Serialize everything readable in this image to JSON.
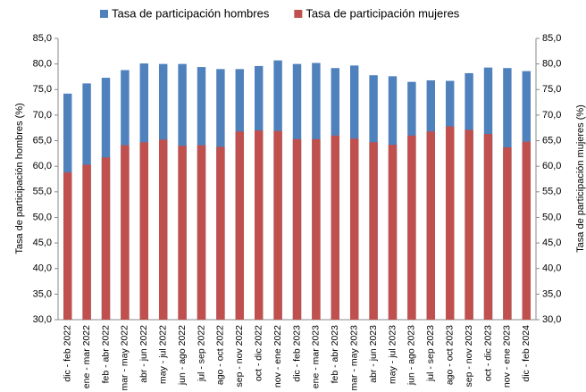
{
  "chart_data": {
    "type": "bar",
    "ylabel": "Tasa de participación hombres (%)",
    "y2label": "Tasa de participación mujeres (%)",
    "categories": [
      "dic - feb 2022",
      "ene - mar 2022",
      "feb - abr 2022",
      "mar - may 2022",
      "abr - jun 2022",
      "may - jul 2022",
      "jun - ago 2022",
      "jul - sep 2022",
      "ago - oct 2022",
      "sep - nov 2022",
      "oct - dic 2022",
      "nov - ene 2022",
      "dic - feb 2023",
      "ene - mar 2023",
      "feb - abr 2023",
      "mar - may 2023",
      "abr - jun 2023",
      "may - jul 2023",
      "jun - ago 2023",
      "jul - sep 2023",
      "ago - oct 2023",
      "sep - nov 2023",
      "oct - dic 2023",
      "nov - ene 2023",
      "dic - feb 2024"
    ],
    "series": [
      {
        "name": "Tasa de participación hombres",
        "color": "#4f81bd",
        "values": [
          74.2,
          76.2,
          77.3,
          78.8,
          80.1,
          80.0,
          80.0,
          79.4,
          79.0,
          79.0,
          79.6,
          80.7,
          80.0,
          80.2,
          79.2,
          79.7,
          77.8,
          77.6,
          76.5,
          76.8,
          76.7,
          78.2,
          79.3,
          79.2,
          78.6
        ]
      },
      {
        "name": "Tasa de participación mujeres",
        "color": "#c0504d",
        "axis": "y2",
        "values": [
          58.8,
          60.3,
          61.7,
          64.1,
          64.7,
          65.2,
          64.0,
          64.1,
          63.8,
          66.8,
          67.0,
          66.9,
          65.3,
          65.3,
          66.0,
          65.4,
          64.7,
          64.2,
          66.0,
          66.8,
          67.8,
          67.1,
          66.3,
          63.7,
          64.8
        ]
      }
    ],
    "ylim": [
      30,
      85
    ],
    "yticks": [
      {
        "value": 30,
        "label": "30,0"
      },
      {
        "value": 35,
        "label": "35,0"
      },
      {
        "value": 40,
        "label": "40,0"
      },
      {
        "value": 45,
        "label": "45,0"
      },
      {
        "value": 50,
        "label": "50,0"
      },
      {
        "value": 55,
        "label": "55,0"
      },
      {
        "value": 60,
        "label": "60,0"
      },
      {
        "value": 65,
        "label": "65,0"
      },
      {
        "value": 70,
        "label": "70,0"
      },
      {
        "value": 75,
        "label": "75,0"
      },
      {
        "value": 80,
        "label": "80,0"
      },
      {
        "value": 85,
        "label": "85,0"
      }
    ],
    "y2lim": [
      30,
      85
    ],
    "y2ticks": [
      {
        "value": 30,
        "label": "30,0"
      },
      {
        "value": 35,
        "label": "35,0"
      },
      {
        "value": 40,
        "label": "40,0"
      },
      {
        "value": 45,
        "label": "45,0"
      },
      {
        "value": 50,
        "label": "50,0"
      },
      {
        "value": 55,
        "label": "55,0"
      },
      {
        "value": 60,
        "label": "60,0"
      },
      {
        "value": 65,
        "label": "65,0"
      },
      {
        "value": 70,
        "label": "70,0"
      },
      {
        "value": 75,
        "label": "75,0"
      },
      {
        "value": 80,
        "label": "80,0"
      },
      {
        "value": 85,
        "label": "85,0"
      }
    ],
    "legend": "top"
  }
}
